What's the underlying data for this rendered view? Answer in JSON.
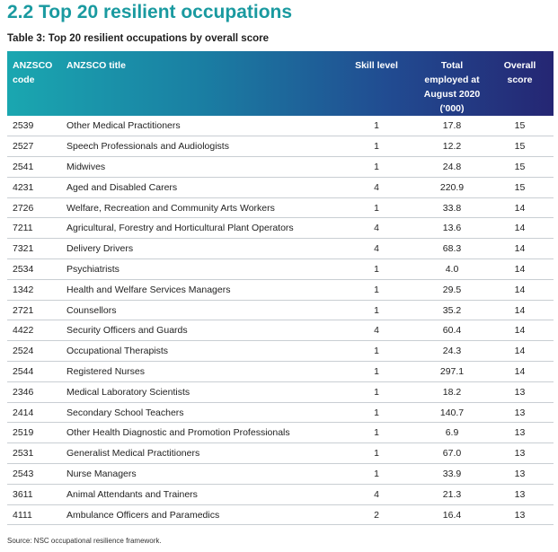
{
  "page": {
    "heading": "2.2 Top 20 resilient occupations",
    "caption": "Table 3: Top 20 resilient occupations by overall score",
    "source": "Source:  NSC occupational resilience framework."
  },
  "colors": {
    "heading": "#1a9aa0",
    "header_gradient_start": "#1aa7b0",
    "header_gradient_end": "#252673",
    "row_divider": "#c9ced3"
  },
  "table": {
    "headers": {
      "code": [
        "ANZSCO",
        "code"
      ],
      "title": [
        "ANZSCO title"
      ],
      "skill": [
        "Skill level"
      ],
      "employed": [
        "Total",
        "employed at",
        "August 2020",
        "('000)"
      ],
      "score": [
        "Overall score"
      ]
    },
    "rows": [
      {
        "code": "2539",
        "title": "Other Medical Practitioners",
        "skill": "1",
        "employed": "17.8",
        "score": "15"
      },
      {
        "code": "2527",
        "title": "Speech Professionals and Audiologists",
        "skill": "1",
        "employed": "12.2",
        "score": "15"
      },
      {
        "code": "2541",
        "title": "Midwives",
        "skill": "1",
        "employed": "24.8",
        "score": "15"
      },
      {
        "code": "4231",
        "title": "Aged and Disabled Carers",
        "skill": "4",
        "employed": "220.9",
        "score": "15"
      },
      {
        "code": "2726",
        "title": "Welfare, Recreation and Community Arts Workers",
        "skill": "1",
        "employed": "33.8",
        "score": "14"
      },
      {
        "code": "7211",
        "title": "Agricultural, Forestry and Horticultural Plant Operators",
        "skill": "4",
        "employed": "13.6",
        "score": "14"
      },
      {
        "code": "7321",
        "title": "Delivery Drivers",
        "skill": "4",
        "employed": "68.3",
        "score": "14"
      },
      {
        "code": "2534",
        "title": "Psychiatrists",
        "skill": "1",
        "employed": "4.0",
        "score": "14"
      },
      {
        "code": "1342",
        "title": "Health and Welfare Services Managers",
        "skill": "1",
        "employed": "29.5",
        "score": "14"
      },
      {
        "code": "2721",
        "title": "Counsellors",
        "skill": "1",
        "employed": "35.2",
        "score": "14"
      },
      {
        "code": "4422",
        "title": "Security Officers and Guards",
        "skill": "4",
        "employed": "60.4",
        "score": "14"
      },
      {
        "code": "2524",
        "title": "Occupational Therapists",
        "skill": "1",
        "employed": "24.3",
        "score": "14"
      },
      {
        "code": "2544",
        "title": "Registered Nurses",
        "skill": "1",
        "employed": "297.1",
        "score": "14"
      },
      {
        "code": "2346",
        "title": "Medical Laboratory Scientists",
        "skill": "1",
        "employed": "18.2",
        "score": "13"
      },
      {
        "code": "2414",
        "title": "Secondary School Teachers",
        "skill": "1",
        "employed": "140.7",
        "score": "13"
      },
      {
        "code": "2519",
        "title": "Other Health Diagnostic and Promotion Professionals",
        "skill": "1",
        "employed": "6.9",
        "score": "13"
      },
      {
        "code": "2531",
        "title": "Generalist Medical Practitioners",
        "skill": "1",
        "employed": "67.0",
        "score": "13"
      },
      {
        "code": "2543",
        "title": "Nurse Managers",
        "skill": "1",
        "employed": "33.9",
        "score": "13"
      },
      {
        "code": "3611",
        "title": "Animal Attendants and Trainers",
        "skill": "4",
        "employed": "21.3",
        "score": "13"
      },
      {
        "code": "4111",
        "title": "Ambulance Officers and Paramedics",
        "skill": "2",
        "employed": "16.4",
        "score": "13"
      }
    ]
  }
}
